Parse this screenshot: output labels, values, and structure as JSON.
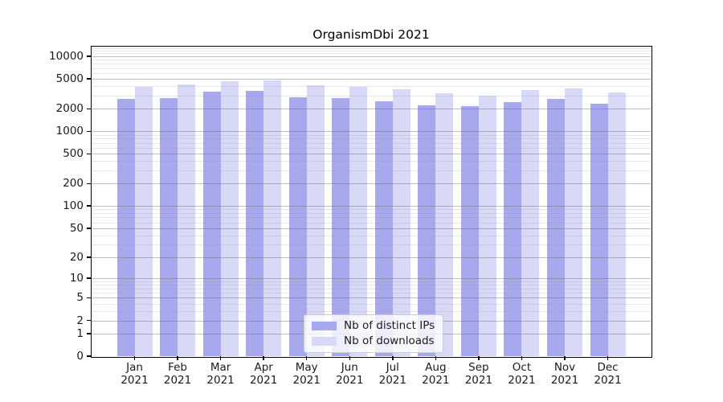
{
  "title": "OrganismDbi 2021",
  "chart_data": {
    "type": "bar",
    "scale": "log1p",
    "title": "OrganismDbi 2021",
    "xlabel": "",
    "ylabel": "",
    "categories": [
      "Jan 2021",
      "Feb 2021",
      "Mar 2021",
      "Apr 2021",
      "May 2021",
      "Jun 2021",
      "Jul 2021",
      "Aug 2021",
      "Sep 2021",
      "Oct 2021",
      "Nov 2021",
      "Dec 2021"
    ],
    "series": [
      {
        "name": "Nb of distinct IPs",
        "color": "#a8a8ef",
        "values": [
          2690,
          2800,
          3410,
          3450,
          2830,
          2760,
          2540,
          2230,
          2190,
          2460,
          2690,
          2320
        ]
      },
      {
        "name": "Nb of downloads",
        "color": "#d8d8f7",
        "values": [
          3960,
          4270,
          4680,
          4790,
          4100,
          3960,
          3680,
          3250,
          2970,
          3530,
          3740,
          3300
        ]
      }
    ],
    "y_ticks": [
      10000,
      5000,
      2000,
      1000,
      500,
      200,
      100,
      50,
      20,
      10,
      5,
      2,
      1,
      0
    ],
    "ylim": [
      0,
      13500
    ],
    "grid": true,
    "legend_position": "lower center"
  }
}
